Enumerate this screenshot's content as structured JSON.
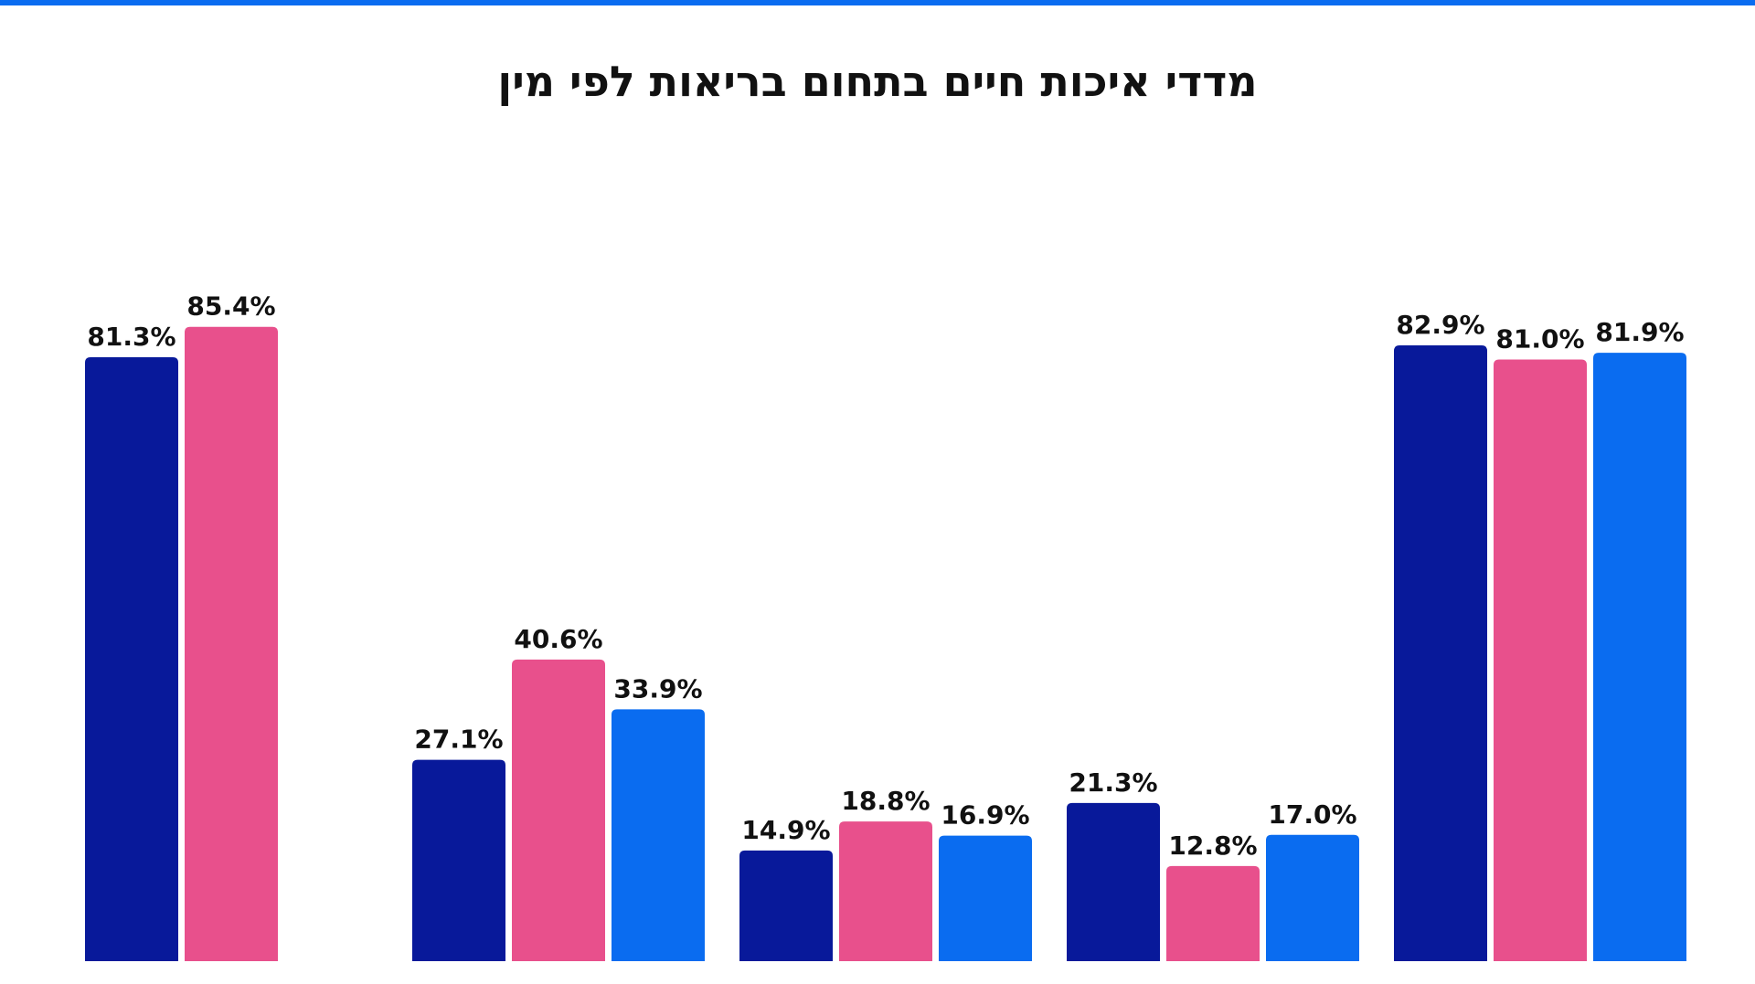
{
  "page": {
    "stripe_color": "#0a6cf0"
  },
  "chart_data": {
    "type": "bar",
    "title": "מדדי איכות חיים בתחום בריאות לפי מין",
    "xlabel": "",
    "ylabel": "",
    "ylim": [
      0,
      100
    ],
    "grid": false,
    "groups": [
      {
        "values": [
          81.3,
          85.4
        ],
        "labels": [
          "81.3%",
          "85.4%"
        ]
      },
      {
        "values": [
          27.1,
          40.6,
          33.9
        ],
        "labels": [
          "27.1%",
          "40.6%",
          "33.9%"
        ]
      },
      {
        "values": [
          14.9,
          18.8,
          16.9
        ],
        "labels": [
          "14.9%",
          "18.8%",
          "16.9%"
        ]
      },
      {
        "values": [
          21.3,
          12.8,
          17.0
        ],
        "labels": [
          "21.3%",
          "12.8%",
          "17.0%"
        ]
      },
      {
        "values": [
          82.9,
          81.0,
          81.9
        ],
        "labels": [
          "82.9%",
          "81.0%",
          "81.9%"
        ]
      }
    ],
    "series_colors": [
      "#08199a",
      "#e8508c",
      "#0a6cf0"
    ]
  }
}
